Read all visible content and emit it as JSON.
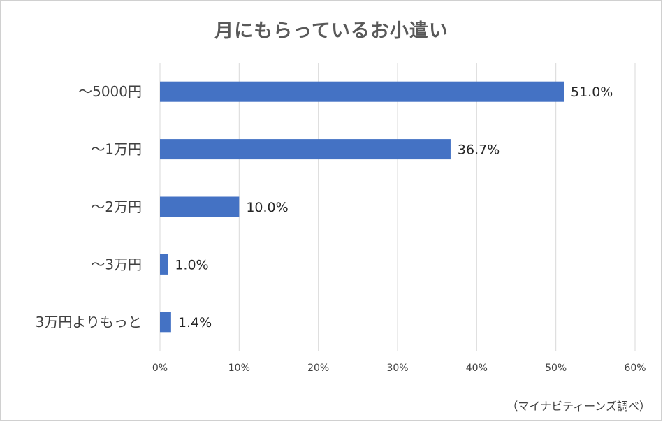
{
  "chart_data": {
    "type": "bar",
    "orientation": "horizontal",
    "title": "月にもらっているお小遣い",
    "categories": [
      "〜5000円",
      "〜1万円",
      "〜2万円",
      "〜3万円",
      "3万円よりもっと"
    ],
    "values": [
      51.0,
      36.7,
      10.0,
      1.0,
      1.4
    ],
    "value_labels": [
      "51.0%",
      "36.7%",
      "10.0%",
      "1.0%",
      "1.4%"
    ],
    "xlim": [
      0,
      60
    ],
    "x_ticks": [
      "0%",
      "10%",
      "20%",
      "30%",
      "40%",
      "50%",
      "60%"
    ],
    "grid": "vertical",
    "bar_color": "#4472C4",
    "source_note": "（マイナビティーンズ調べ）"
  }
}
